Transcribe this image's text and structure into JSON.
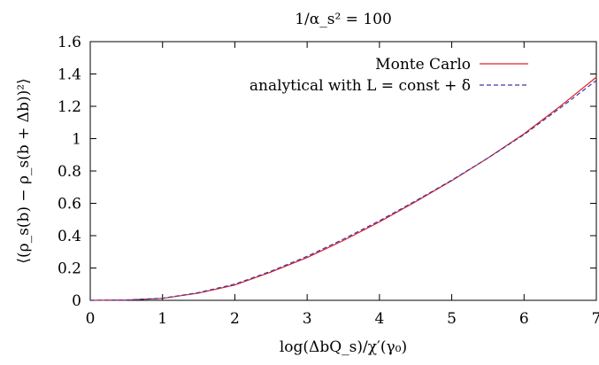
{
  "chart_data": {
    "type": "line",
    "title": "1/α_s² = 100",
    "xlabel": "log(ΔbQ_s)/χ′(γ₀)",
    "ylabel": "⟨(ρ_s(b) − ρ_s(b + Δb))²⟩",
    "xlim": [
      0,
      7
    ],
    "ylim": [
      0,
      1.6
    ],
    "x_ticks": [
      "0",
      "1",
      "2",
      "3",
      "4",
      "5",
      "6",
      "7"
    ],
    "y_ticks": [
      "0",
      "0.2",
      "0.4",
      "0.6",
      "0.8",
      "1",
      "1.2",
      "1.4",
      "1.6"
    ],
    "grid": false,
    "legend_position": "top-right",
    "series": [
      {
        "name": "Monte Carlo",
        "color": "#e0202a",
        "dash": "solid",
        "x": [
          0,
          0.5,
          1.0,
          1.5,
          2.0,
          2.5,
          3.0,
          3.5,
          4.0,
          4.5,
          5.0,
          5.5,
          6.0,
          6.5,
          7.0
        ],
        "y": [
          0.0,
          0.002,
          0.012,
          0.045,
          0.095,
          0.175,
          0.265,
          0.37,
          0.485,
          0.61,
          0.74,
          0.88,
          1.03,
          1.2,
          1.38
        ]
      },
      {
        "name": "analytical with L = const + δ",
        "color": "#3a3aa0",
        "dash": "dashed",
        "x": [
          0,
          0.5,
          1.0,
          1.5,
          2.0,
          2.5,
          3.0,
          3.5,
          4.0,
          4.5,
          5.0,
          5.5,
          6.0,
          6.5,
          7.0
        ],
        "y": [
          0.0,
          0.002,
          0.013,
          0.048,
          0.1,
          0.18,
          0.272,
          0.378,
          0.492,
          0.615,
          0.743,
          0.88,
          1.025,
          1.19,
          1.36
        ]
      }
    ]
  }
}
